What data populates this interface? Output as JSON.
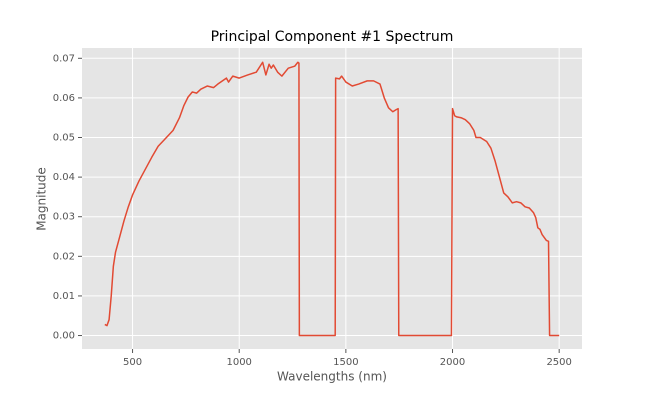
{
  "chart_data": {
    "type": "line",
    "title": "Principal Component #1 Spectrum",
    "x_label": "Wavelengths (nm)",
    "y_label": "Magnitude",
    "x": [
      370,
      380,
      390,
      400,
      410,
      420,
      440,
      460,
      480,
      500,
      530,
      560,
      590,
      620,
      650,
      690,
      720,
      740,
      760,
      780,
      800,
      820,
      850,
      880,
      900,
      940,
      950,
      970,
      1000,
      1040,
      1080,
      1110,
      1125,
      1140,
      1150,
      1160,
      1180,
      1200,
      1230,
      1260,
      1275,
      1280,
      1282,
      1450,
      1452,
      1470,
      1480,
      1500,
      1530,
      1560,
      1600,
      1630,
      1660,
      1680,
      1700,
      1720,
      1735,
      1745,
      1748,
      1995,
      2000,
      2010,
      2020,
      2040,
      2060,
      2080,
      2100,
      2110,
      2130,
      2145,
      2160,
      2180,
      2200,
      2220,
      2240,
      2260,
      2280,
      2300,
      2320,
      2340,
      2360,
      2380,
      2390,
      2400,
      2410,
      2420,
      2440,
      2450,
      2455,
      2500
    ],
    "series": [
      {
        "name": "PC1",
        "color": "#e24a33",
        "values": [
          0.0028,
          0.0025,
          0.004,
          0.01,
          0.0175,
          0.021,
          0.025,
          0.029,
          0.0325,
          0.0355,
          0.039,
          0.042,
          0.045,
          0.0478,
          0.0495,
          0.0518,
          0.055,
          0.058,
          0.0602,
          0.0615,
          0.0612,
          0.0622,
          0.063,
          0.0626,
          0.0635,
          0.065,
          0.064,
          0.0655,
          0.065,
          0.0658,
          0.0665,
          0.069,
          0.0658,
          0.0685,
          0.0675,
          0.0683,
          0.0665,
          0.0655,
          0.0675,
          0.068,
          0.069,
          0.0688,
          0,
          0,
          0.065,
          0.0648,
          0.0655,
          0.064,
          0.063,
          0.0635,
          0.0643,
          0.0643,
          0.0635,
          0.06,
          0.0575,
          0.0565,
          0.057,
          0.0573,
          0,
          0,
          0.0573,
          0.0555,
          0.0552,
          0.055,
          0.0545,
          0.0535,
          0.0518,
          0.05,
          0.05,
          0.0495,
          0.049,
          0.0473,
          0.044,
          0.04,
          0.036,
          0.035,
          0.0335,
          0.0338,
          0.0335,
          0.0325,
          0.0322,
          0.031,
          0.0298,
          0.0272,
          0.0268,
          0.0255,
          0.024,
          0.0238,
          0,
          0
        ]
      }
    ],
    "xlim": [
      263,
      2607
    ],
    "xticks": [
      500,
      1000,
      1500,
      2000,
      2500
    ],
    "ylim": [
      -0.0034,
      0.0726
    ],
    "yticks": [
      {
        "value": 0,
        "label": "0.00"
      },
      0.01,
      0.02,
      0.03,
      0.04,
      0.05,
      0.06,
      0.07
    ],
    "grid": true
  }
}
